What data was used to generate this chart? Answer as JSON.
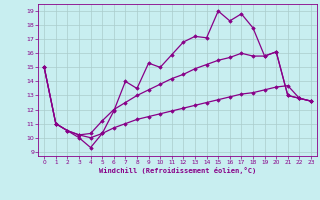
{
  "xlabel": "Windchill (Refroidissement éolien,°C)",
  "bg_color": "#c8eef0",
  "line_color": "#880088",
  "grid_color": "#aacccc",
  "xlim": [
    -0.5,
    23.5
  ],
  "ylim": [
    8.7,
    19.5
  ],
  "yticks": [
    9,
    10,
    11,
    12,
    13,
    14,
    15,
    16,
    17,
    18,
    19
  ],
  "xticks": [
    0,
    1,
    2,
    3,
    4,
    5,
    6,
    7,
    8,
    9,
    10,
    11,
    12,
    13,
    14,
    15,
    16,
    17,
    18,
    19,
    20,
    21,
    22,
    23
  ],
  "s1_x": [
    0,
    1,
    3,
    4,
    5,
    6,
    7,
    8,
    9,
    10,
    11,
    12,
    13,
    14,
    15,
    16,
    17,
    18,
    19,
    20,
    21,
    22,
    23
  ],
  "s1_y": [
    15,
    11,
    10.0,
    9.3,
    10.3,
    11.9,
    14.0,
    13.5,
    15.3,
    15.0,
    15.9,
    16.8,
    17.2,
    17.1,
    19.0,
    18.3,
    18.8,
    17.8,
    15.8,
    16.1,
    13.0,
    12.8,
    12.6
  ],
  "s2_x": [
    0,
    1,
    2,
    3,
    4,
    5,
    6,
    7,
    8,
    9,
    10,
    11,
    12,
    13,
    14,
    15,
    16,
    17,
    18,
    19,
    20,
    21,
    22,
    23
  ],
  "s2_y": [
    15,
    11,
    10.5,
    10.2,
    10.3,
    11.2,
    12.0,
    12.5,
    13.0,
    13.4,
    13.8,
    14.2,
    14.5,
    14.9,
    15.2,
    15.5,
    15.7,
    16.0,
    15.8,
    15.8,
    16.1,
    13.0,
    12.8,
    12.6
  ],
  "s3_x": [
    0,
    1,
    2,
    3,
    4,
    5,
    6,
    7,
    8,
    9,
    10,
    11,
    12,
    13,
    14,
    15,
    16,
    17,
    18,
    19,
    20,
    21,
    22,
    23
  ],
  "s3_y": [
    15,
    11,
    10.5,
    10.2,
    10.0,
    10.3,
    10.7,
    11.0,
    11.3,
    11.5,
    11.7,
    11.9,
    12.1,
    12.3,
    12.5,
    12.7,
    12.9,
    13.1,
    13.2,
    13.4,
    13.6,
    13.7,
    12.8,
    12.6
  ]
}
